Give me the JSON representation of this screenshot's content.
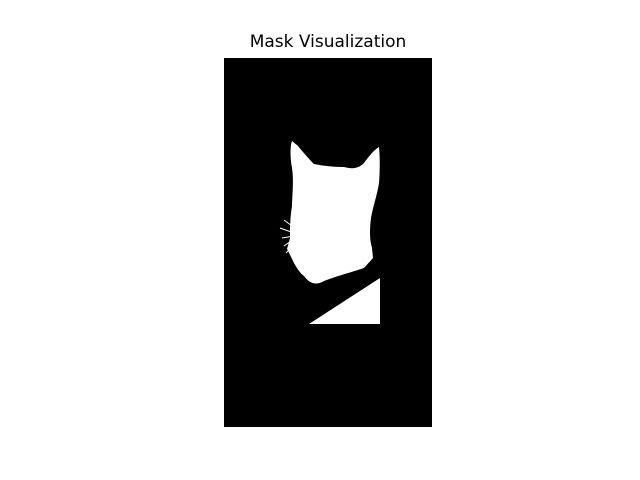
{
  "title": "Mask Visualization",
  "colors": {
    "background": "#000000",
    "foreground": "#ffffff"
  }
}
